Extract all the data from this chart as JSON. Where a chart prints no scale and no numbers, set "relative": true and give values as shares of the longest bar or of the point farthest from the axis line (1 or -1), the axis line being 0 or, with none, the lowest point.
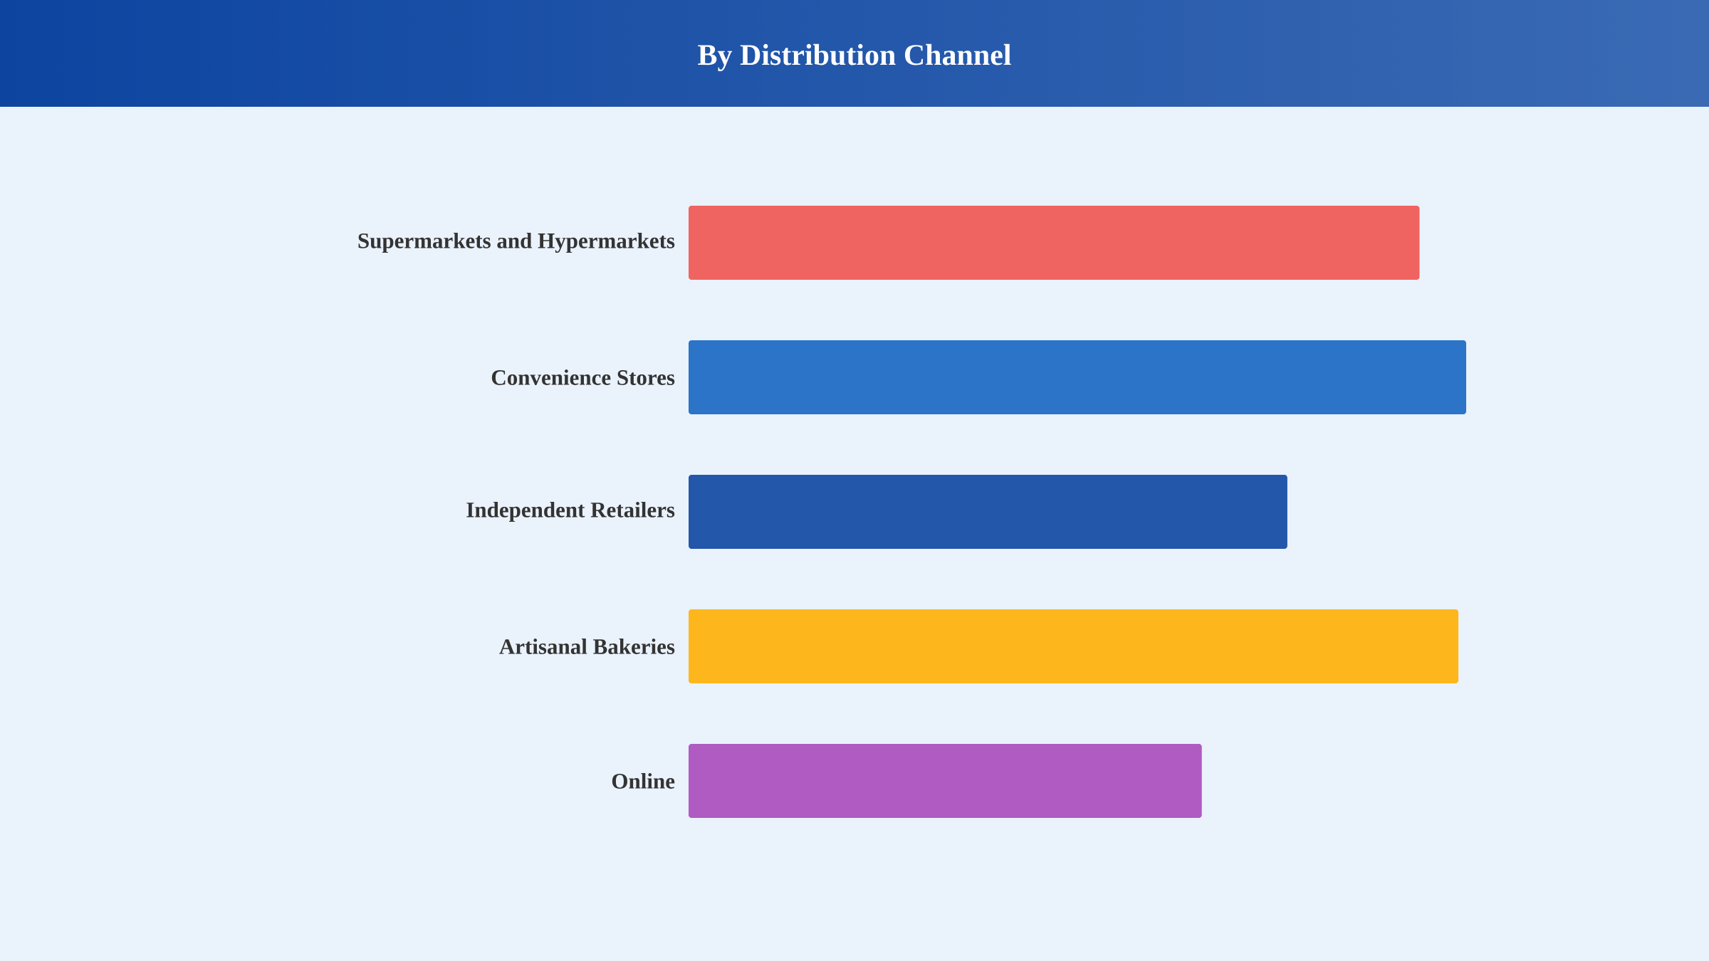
{
  "chart_data": {
    "type": "bar",
    "orientation": "horizontal",
    "relative": true,
    "title": "By Distribution Channel",
    "categories": [
      "Supermarkets and Hypermarkets",
      "Convenience Stores",
      "Independent Retailers",
      "Artisanal Bakeries",
      "Online"
    ],
    "values": [
      0.94,
      1,
      0.77,
      0.99,
      0.66
    ],
    "colors": [
      "#ef6461",
      "#2b74c7",
      "#2357aa",
      "#fdb71c",
      "#b05bc1"
    ]
  }
}
